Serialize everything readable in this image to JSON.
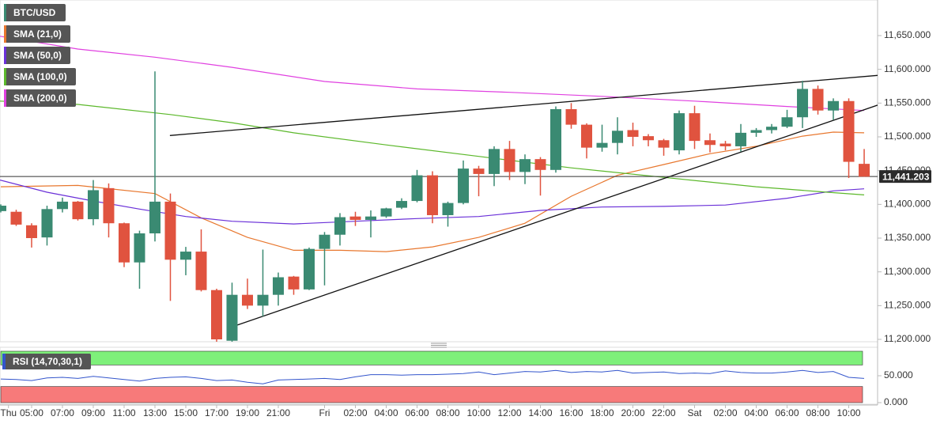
{
  "chart_data": {
    "type": "candlestick",
    "symbol": "BTC/USD",
    "candles": {
      "up_color": "#3a8a72",
      "down_color": "#e0533f",
      "x": [
        3,
        4,
        5,
        6,
        7,
        8,
        9,
        10,
        11,
        12,
        13,
        14,
        15,
        16,
        17,
        18,
        19,
        20,
        21,
        22,
        23,
        24,
        25,
        26,
        27,
        28,
        29,
        30,
        31,
        32,
        33,
        34,
        35,
        36,
        37,
        38,
        39,
        40,
        41,
        42,
        43,
        44,
        45,
        46,
        47,
        48,
        49,
        50,
        51,
        52,
        53,
        54,
        55,
        56,
        57,
        58,
        59
      ],
      "open": [
        11390,
        11389,
        11369,
        11351,
        11393,
        11404,
        11378,
        11424,
        11372,
        11314,
        11357,
        11404,
        11318,
        11330,
        11273,
        11198,
        11266,
        11250,
        11266,
        11293,
        11274,
        11334,
        11355,
        11382,
        11377,
        11382,
        11395,
        11405,
        11443,
        11384,
        11402,
        11453,
        11445,
        11482,
        11448,
        11467,
        11451,
        11541,
        11518,
        11484,
        11491,
        11510,
        11501,
        11495,
        11480,
        11535,
        11495,
        11490,
        11486,
        11506,
        11510,
        11515,
        11529,
        11571,
        11539,
        11553,
        11460
      ],
      "high": [
        11400,
        11392,
        11372,
        11398,
        11410,
        11405,
        11436,
        11431,
        11373,
        11361,
        11597,
        11416,
        11337,
        11363,
        11275,
        11284,
        11290,
        11333,
        11299,
        11294,
        11336,
        11359,
        11387,
        11389,
        11391,
        11395,
        11409,
        11451,
        11449,
        11404,
        11465,
        11457,
        11486,
        11494,
        11474,
        11470,
        11545,
        11550,
        11520,
        11518,
        11529,
        11521,
        11504,
        11497,
        11539,
        11546,
        11505,
        11494,
        11519,
        11513,
        11519,
        11540,
        11583,
        11576,
        11557,
        11557,
        11482
      ],
      "low": [
        11388,
        11368,
        11336,
        11339,
        11388,
        11376,
        11369,
        11351,
        11307,
        11275,
        11345,
        11257,
        11295,
        11271,
        11196,
        11196,
        11245,
        11234,
        11250,
        11266,
        11273,
        11280,
        11339,
        11368,
        11351,
        11380,
        11393,
        11403,
        11372,
        11367,
        11400,
        11412,
        11427,
        11436,
        11430,
        11413,
        11447,
        11512,
        11468,
        11478,
        11474,
        11486,
        11486,
        11472,
        11474,
        11482,
        11477,
        11480,
        11478,
        11500,
        11505,
        11513,
        11513,
        11533,
        11525,
        11439,
        11441
      ],
      "close": [
        11398,
        11370,
        11350,
        11393,
        11404,
        11378,
        11421,
        11372,
        11314,
        11357,
        11404,
        11318,
        11330,
        11273,
        11200,
        11266,
        11250,
        11266,
        11292,
        11274,
        11334,
        11355,
        11381,
        11377,
        11382,
        11394,
        11405,
        11443,
        11384,
        11402,
        11453,
        11445,
        11482,
        11448,
        11467,
        11451,
        11541,
        11518,
        11484,
        11491,
        11509,
        11500,
        11495,
        11484,
        11535,
        11494,
        11488,
        11486,
        11506,
        11510,
        11515,
        11529,
        11571,
        11539,
        11553,
        11463,
        11441
      ]
    },
    "symbol_color": "#3a8a72",
    "series": [
      {
        "name": "SMA (21,0)",
        "color": "#e8772e",
        "x": [
          3,
          8,
          13,
          16,
          19,
          22,
          25,
          28,
          31,
          34,
          37,
          40,
          43,
          46,
          49,
          52,
          55,
          57,
          59
        ],
        "values": [
          11426,
          11428,
          11416,
          11380,
          11351,
          11332,
          11332,
          11330,
          11337,
          11351,
          11372,
          11412,
          11443,
          11459,
          11475,
          11486,
          11501,
          11507,
          11506
        ]
      },
      {
        "name": "SMA (50,0)",
        "color": "#6a30d8",
        "x": [
          2.95,
          6,
          9,
          12,
          15,
          18,
          22,
          26,
          30,
          34,
          38,
          42,
          46,
          50,
          54,
          57,
          59
        ],
        "values": [
          11436,
          11418,
          11405,
          11393,
          11382,
          11375,
          11371,
          11375,
          11379,
          11382,
          11391,
          11396,
          11397,
          11399,
          11409,
          11420,
          11423
        ]
      },
      {
        "name": "SMA (100,0)",
        "color": "#5cb82b",
        "x": [
          2.95,
          8,
          14,
          18,
          22,
          28,
          34,
          40,
          46,
          52,
          56,
          59
        ],
        "values": [
          11553,
          11548,
          11533,
          11521,
          11506,
          11488,
          11471,
          11454,
          11440,
          11426,
          11419,
          11414
        ]
      },
      {
        "name": "SMA (200,0)",
        "color": "#e040e0",
        "x": [
          2.95,
          8,
          13,
          18,
          24,
          30,
          36,
          42,
          48,
          54,
          59
        ],
        "values": [
          11649,
          11630,
          11618,
          11603,
          11582,
          11571,
          11566,
          11560,
          11553,
          11545,
          11539
        ]
      }
    ],
    "trendlines": [
      {
        "color": "#111111",
        "x": [
          13.97,
          59.87
        ],
        "values": [
          11502,
          11591
        ]
      },
      {
        "color": "#111111",
        "x": [
          17.92,
          59.87
        ],
        "values": [
          11218,
          11547
        ]
      }
    ],
    "last_price": {
      "value": 11441.203,
      "label": "11,441.203"
    },
    "xlim": [
      2.95,
      59.87
    ],
    "xticks": [
      {
        "value": 3.5,
        "label": "Thu"
      },
      {
        "value": 5,
        "label": "05:00"
      },
      {
        "value": 7,
        "label": "07:00"
      },
      {
        "value": 9,
        "label": "09:00"
      },
      {
        "value": 11,
        "label": "11:00"
      },
      {
        "value": 13,
        "label": "13:00"
      },
      {
        "value": 15,
        "label": "15:00"
      },
      {
        "value": 17,
        "label": "17:00"
      },
      {
        "value": 19,
        "label": "19:00"
      },
      {
        "value": 21,
        "label": "21:00"
      },
      {
        "value": 24,
        "label": "Fri"
      },
      {
        "value": 26,
        "label": "02:00"
      },
      {
        "value": 28,
        "label": "04:00"
      },
      {
        "value": 30,
        "label": "06:00"
      },
      {
        "value": 32,
        "label": "08:00"
      },
      {
        "value": 34,
        "label": "10:00"
      },
      {
        "value": 36,
        "label": "12:00"
      },
      {
        "value": 38,
        "label": "14:00"
      },
      {
        "value": 40,
        "label": "16:00"
      },
      {
        "value": 42,
        "label": "18:00"
      },
      {
        "value": 44,
        "label": "20:00"
      },
      {
        "value": 46,
        "label": "22:00"
      },
      {
        "value": 48,
        "label": "Sat"
      },
      {
        "value": 50,
        "label": "02:00"
      },
      {
        "value": 52,
        "label": "04:00"
      },
      {
        "value": 54,
        "label": "06:00"
      },
      {
        "value": 56,
        "label": "08:00"
      },
      {
        "value": 58,
        "label": "10:00"
      }
    ],
    "ylim": [
      11196.5,
      11702.7
    ],
    "yticks": [
      {
        "value": 11200,
        "label": "11,200.000"
      },
      {
        "value": 11250,
        "label": "11,250.000"
      },
      {
        "value": 11300,
        "label": "11,300.000"
      },
      {
        "value": 11350,
        "label": "11,350.000"
      },
      {
        "value": 11400,
        "label": "11,400.000"
      },
      {
        "value": 11450,
        "label": "11,450.000"
      },
      {
        "value": 11500,
        "label": "11,500.000"
      },
      {
        "value": 11550,
        "label": "11,550.000"
      },
      {
        "value": 11600,
        "label": "11,600.000"
      },
      {
        "value": 11650,
        "label": "11,650.000"
      }
    ],
    "rsi": {
      "name": "RSI (14,70,30,1)",
      "color": "#3355cc",
      "values": [
        44,
        43,
        41,
        46,
        47,
        45,
        49,
        46,
        43,
        40,
        45,
        47,
        48,
        45,
        41,
        42,
        38,
        35,
        42,
        43,
        44,
        45,
        43,
        48,
        52,
        52,
        51,
        52,
        52,
        53,
        54,
        57,
        52,
        55,
        58,
        57,
        60,
        56,
        58,
        57,
        60,
        55,
        56,
        57,
        54,
        55,
        54,
        59,
        56,
        55,
        55,
        57,
        60,
        56,
        58,
        47,
        45
      ],
      "ylim": [
        0,
        100
      ],
      "yticks": [
        {
          "value": 0,
          "label": "0.000"
        },
        {
          "value": 50,
          "label": "50.000"
        }
      ],
      "overbought": 70,
      "oversold": 30,
      "overbought_color": "#7ef07a",
      "oversold_color": "#f77a7a"
    }
  }
}
